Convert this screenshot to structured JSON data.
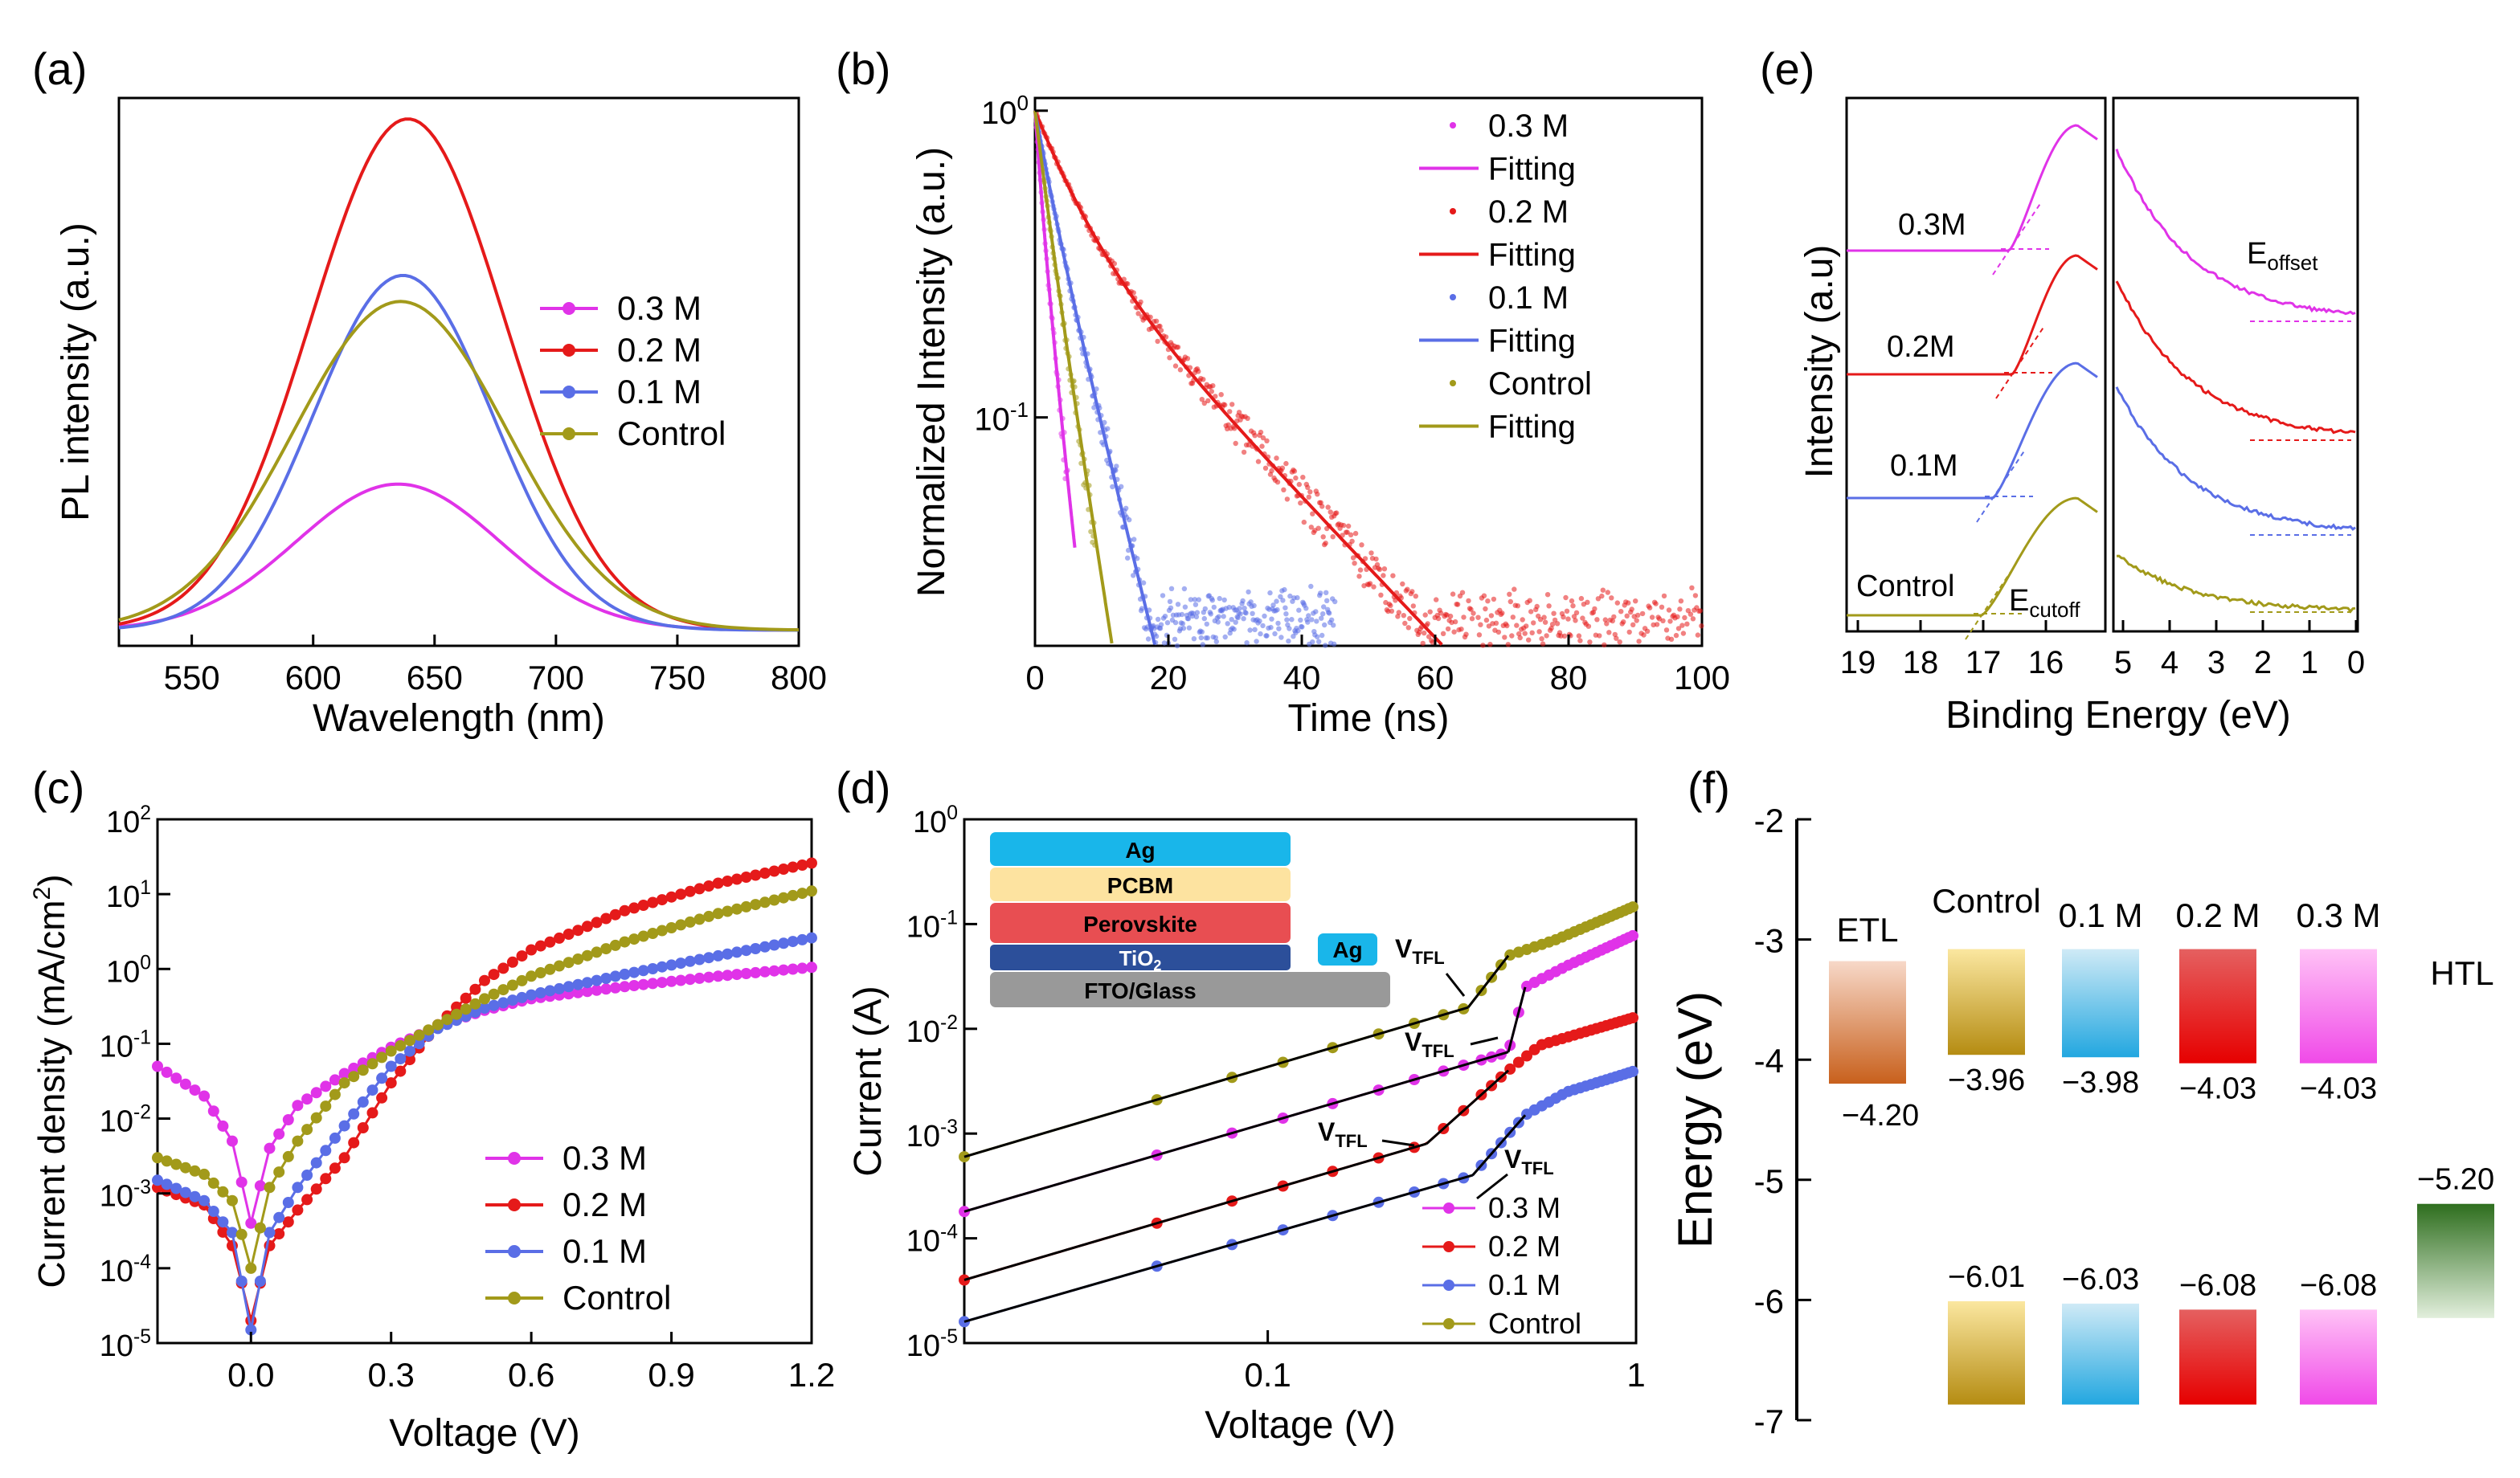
{
  "figure": {
    "colors": {
      "m03": "#e033e8",
      "m02": "#e51a1a",
      "m01": "#5a6ee6",
      "control": "#a29a1a",
      "fit": "#000000"
    },
    "panels": {
      "a": "(a)",
      "b": "(b)",
      "c": "(c)",
      "d": "(d)",
      "e": "(e)",
      "f": "(f)"
    }
  },
  "chart_data": [
    {
      "id": "a",
      "type": "line",
      "title": "",
      "xlabel": "Wavelength (nm)",
      "ylabel": "PL intensity (a.u.)",
      "xlim": [
        520,
        800
      ],
      "ylim": [
        0,
        1.05
      ],
      "xticks": [
        550,
        600,
        650,
        700,
        750,
        800
      ],
      "legend": [
        "0.3 M",
        "0.2 M",
        "0.1 M",
        "Control"
      ],
      "legend_position": "right",
      "series": [
        {
          "name": "0.3 M",
          "peak": 635,
          "amplitude": 0.28,
          "width": 42,
          "baseline": 0.03
        },
        {
          "name": "0.2 M",
          "peak": 639,
          "amplitude": 0.98,
          "width": 40,
          "baseline": 0.03
        },
        {
          "name": "0.1 M",
          "peak": 637,
          "amplitude": 0.68,
          "width": 37,
          "baseline": 0.03
        },
        {
          "name": "Control",
          "peak": 636,
          "amplitude": 0.63,
          "width": 44,
          "baseline": 0.03
        }
      ]
    },
    {
      "id": "b",
      "type": "scatter",
      "title": "",
      "xlabel": "Time (ns)",
      "ylabel": "Normalized Intensity (a.u.)",
      "xlim": [
        0,
        100
      ],
      "ylim": [
        0.018,
        1.1
      ],
      "yscale": "log",
      "xticks": [
        0,
        20,
        40,
        60,
        80,
        100
      ],
      "yticks": [
        {
          "v": 1,
          "l": "10",
          "e": "0"
        },
        {
          "v": 0.1,
          "l": "10",
          "e": "-1"
        }
      ],
      "legend": [
        "0.3 M",
        "Fitting",
        "0.2 M",
        "Fitting",
        "0.1 M",
        "Fitting",
        "Control",
        "Fitting"
      ],
      "legend_position": "top-right",
      "series": [
        {
          "name": "0.3 M",
          "tau_fast": 1.0,
          "tau_slow": 2.2,
          "f_fast": 0.45,
          "t_end": 6,
          "scatter_end": 5
        },
        {
          "name": "0.2 M",
          "tau_fast": 5.5,
          "tau_slow": 19,
          "f_fast": 0.55,
          "t_end": 100,
          "scatter_end": 100
        },
        {
          "name": "0.1 M",
          "tau_fast": 2.5,
          "tau_slow": 5.0,
          "f_fast": 0.35,
          "t_end": 27,
          "scatter_end": 45
        },
        {
          "name": "Control",
          "tau_fast": 1.8,
          "tau_slow": 3.2,
          "f_fast": 0.35,
          "t_end": 12,
          "scatter_end": 9
        }
      ]
    },
    {
      "id": "c",
      "type": "line",
      "title": "",
      "xlabel": "Voltage (V)",
      "ylabel": "Current density (mA/cm2)",
      "xlim": [
        -0.2,
        1.2
      ],
      "ylim": [
        1e-05,
        100
      ],
      "yscale": "log",
      "xticks": [
        0.0,
        0.3,
        0.6,
        0.9,
        1.2
      ],
      "yticks": [
        {
          "v": 100,
          "e": "2"
        },
        {
          "v": 10,
          "e": "1"
        },
        {
          "v": 1,
          "e": "0"
        },
        {
          "v": 0.1,
          "e": "-1"
        },
        {
          "v": 0.01,
          "e": "-2"
        },
        {
          "v": 0.001,
          "e": "-3"
        },
        {
          "v": 0.0001,
          "e": "-4"
        },
        {
          "v": 1e-05,
          "e": "-5"
        }
      ],
      "legend": [
        "0.3 M",
        "0.2 M",
        "0.1 M",
        "Control"
      ],
      "legend_position": "bottom-right",
      "series": [
        {
          "name": "0.3 M",
          "points": [
            [
              -0.2,
              0.05
            ],
            [
              -0.1,
              0.02
            ],
            [
              -0.04,
              0.005
            ],
            [
              0,
              0.0004
            ],
            [
              0.04,
              0.004
            ],
            [
              0.1,
              0.015
            ],
            [
              0.2,
              0.04
            ],
            [
              0.3,
              0.09
            ],
            [
              0.4,
              0.17
            ],
            [
              0.5,
              0.28
            ],
            [
              0.6,
              0.4
            ],
            [
              0.8,
              0.58
            ],
            [
              1.0,
              0.8
            ],
            [
              1.2,
              1.05
            ]
          ]
        },
        {
          "name": "0.2 M",
          "points": [
            [
              -0.2,
              0.0012
            ],
            [
              -0.1,
              0.0007
            ],
            [
              -0.04,
              0.0002
            ],
            [
              0,
              2e-05
            ],
            [
              0.04,
              0.0002
            ],
            [
              0.1,
              0.0006
            ],
            [
              0.2,
              0.003
            ],
            [
              0.3,
              0.03
            ],
            [
              0.4,
              0.18
            ],
            [
              0.5,
              0.7
            ],
            [
              0.6,
              1.8
            ],
            [
              0.8,
              6
            ],
            [
              1.0,
              14
            ],
            [
              1.2,
              26
            ]
          ]
        },
        {
          "name": "0.1 M",
          "points": [
            [
              -0.2,
              0.0015
            ],
            [
              -0.1,
              0.0008
            ],
            [
              -0.04,
              0.0003
            ],
            [
              0,
              1.5e-05
            ],
            [
              0.04,
              0.0003
            ],
            [
              0.1,
              0.0012
            ],
            [
              0.2,
              0.008
            ],
            [
              0.3,
              0.05
            ],
            [
              0.4,
              0.16
            ],
            [
              0.5,
              0.3
            ],
            [
              0.6,
              0.45
            ],
            [
              0.8,
              0.85
            ],
            [
              1.0,
              1.5
            ],
            [
              1.2,
              2.6
            ]
          ]
        },
        {
          "name": "Control",
          "points": [
            [
              -0.2,
              0.003
            ],
            [
              -0.1,
              0.0018
            ],
            [
              -0.04,
              0.0008
            ],
            [
              0,
              0.0001
            ],
            [
              0.04,
              0.0012
            ],
            [
              0.1,
              0.005
            ],
            [
              0.2,
              0.03
            ],
            [
              0.3,
              0.08
            ],
            [
              0.4,
              0.18
            ],
            [
              0.5,
              0.4
            ],
            [
              0.6,
              0.8
            ],
            [
              0.8,
              2.3
            ],
            [
              1.0,
              5.5
            ],
            [
              1.2,
              11
            ]
          ]
        }
      ]
    },
    {
      "id": "d",
      "type": "line",
      "title": "",
      "xlabel": "Voltage (V)",
      "ylabel": "Current (A)",
      "xlim": [
        0.015,
        1.0
      ],
      "ylim": [
        1e-05,
        1
      ],
      "xscale": "log",
      "yscale": "log",
      "xticks": [
        {
          "v": 0.1,
          "l": "0.1"
        },
        {
          "v": 1,
          "l": "1"
        }
      ],
      "yticks": [
        {
          "v": 1,
          "e": "0"
        },
        {
          "v": 0.1,
          "e": "-1"
        },
        {
          "v": 0.01,
          "e": "-2"
        },
        {
          "v": 0.001,
          "e": "-3"
        },
        {
          "v": 0.0001,
          "e": "-4"
        },
        {
          "v": 1e-05,
          "e": "-5"
        }
      ],
      "legend": [
        "0.3 M",
        "0.2 M",
        "0.1 M",
        "Control"
      ],
      "legend_position": "bottom-right",
      "series": [
        {
          "name": "Control",
          "points": [
            [
              0.015,
              0.0006
            ],
            [
              0.35,
              0.016
            ],
            [
              0.45,
              0.05
            ],
            [
              0.6,
              0.07
            ],
            [
              1.0,
              0.15
            ]
          ]
        },
        {
          "name": "0.3 M",
          "points": [
            [
              0.015,
              0.00018
            ],
            [
              0.45,
              0.006
            ],
            [
              0.5,
              0.025
            ],
            [
              0.65,
              0.04
            ],
            [
              1.0,
              0.08
            ]
          ]
        },
        {
          "name": "0.2 M",
          "points": [
            [
              0.015,
              4e-05
            ],
            [
              0.27,
              0.0008
            ],
            [
              0.45,
              0.004
            ],
            [
              0.55,
              0.007
            ],
            [
              1.0,
              0.013
            ]
          ]
        },
        {
          "name": "0.1 M",
          "points": [
            [
              0.015,
              1.6e-05
            ],
            [
              0.36,
              0.0004
            ],
            [
              0.5,
              0.0015
            ],
            [
              0.65,
              0.0025
            ],
            [
              1.0,
              0.004
            ]
          ]
        }
      ],
      "annotations": [
        "VTFL",
        "VTFL",
        "VTFL",
        "VTFL"
      ],
      "inset": {
        "layers": [
          "Ag",
          "PCBM",
          "Perovskite",
          "TiO2",
          "FTO/Glass"
        ],
        "side_contact": "Ag"
      }
    },
    {
      "id": "e",
      "type": "line",
      "title": "",
      "xlabel": "Binding Energy (eV)",
      "ylabel": "Intensity (a.u)",
      "left_xticks": [
        19,
        18,
        17,
        16
      ],
      "right_xticks": [
        5,
        4,
        3,
        2,
        1,
        0
      ],
      "labels": [
        "0.3M",
        "0.2M",
        "0.1M",
        "Control"
      ],
      "annotations": {
        "cutoff": "E",
        "cutoff_sub": "cutoff",
        "offset": "E",
        "offset_sub": "offset"
      }
    },
    {
      "id": "f",
      "type": "bar",
      "title": "",
      "ylabel": "Energy (eV)",
      "ylim": [
        -7,
        -2
      ],
      "yticks": [
        -2,
        -3,
        -4,
        -5,
        -6,
        -7
      ],
      "categories": [
        "ETL",
        "Control",
        "0.1 M",
        "0.2 M",
        "0.3 M",
        "HTL"
      ],
      "cb_values": [
        -4.2,
        -3.96,
        -3.98,
        -4.03,
        -4.03
      ],
      "cb_labels": [
        "−4.20",
        "−3.96",
        "−3.98",
        "−4.03",
        "−4.03"
      ],
      "vb_values": [
        -6.01,
        -6.03,
        -6.08,
        -6.08
      ],
      "vb_labels": [
        "−6.01",
        "−6.03",
        "−6.08",
        "−6.08"
      ],
      "htl_value": -5.2,
      "htl_label": "−5.20"
    }
  ]
}
